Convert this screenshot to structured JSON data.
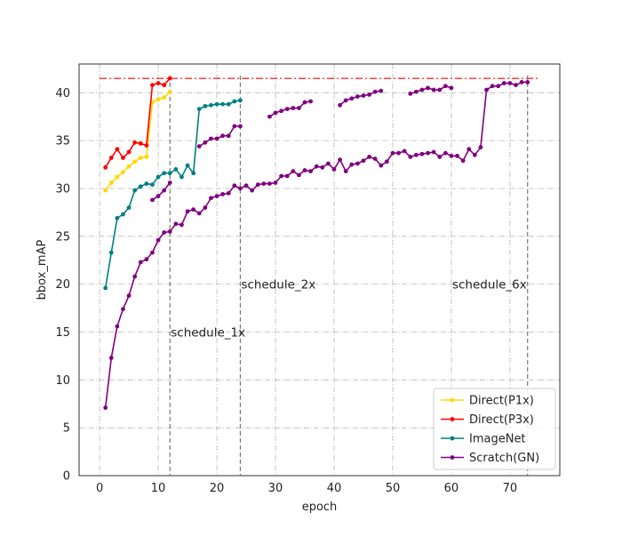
{
  "chart_data": {
    "type": "line",
    "title": "",
    "xlabel": "epoch",
    "ylabel": "bbox_mAP",
    "xlim": [
      -3.5,
      78.5
    ],
    "ylim": [
      0,
      43
    ],
    "xticks": [
      0,
      10,
      20,
      30,
      40,
      50,
      60,
      70
    ],
    "yticks": [
      0,
      5,
      10,
      15,
      20,
      25,
      30,
      35,
      40
    ],
    "grid": true,
    "legend_position": "lower-right",
    "reference_line": {
      "y": 41.5,
      "x_range": [
        0,
        75
      ],
      "color": "#ff0000",
      "style": "dash-dot"
    },
    "vlines": [
      {
        "x": 12,
        "label": "schedule_1x",
        "label_x": 12,
        "label_y": 15
      },
      {
        "x": 24,
        "label": "schedule_2x",
        "label_x": 24,
        "label_y": 20
      },
      {
        "x": 73,
        "label": "schedule_6x",
        "label_x": 60,
        "label_y": 20
      }
    ],
    "series": [
      {
        "name": "Direct(P1x)",
        "color": "#ffd700",
        "x": [
          1,
          2,
          3,
          4,
          5,
          6,
          7,
          8,
          9,
          10,
          11,
          12
        ],
        "y": [
          29.8,
          30.6,
          31.2,
          31.7,
          32.3,
          32.8,
          33.2,
          33.3,
          39.0,
          39.3,
          39.5,
          40.1
        ]
      },
      {
        "name": "Direct(P3x)",
        "color": "#ff0000",
        "x": [
          1,
          2,
          3,
          4,
          5,
          6,
          7,
          8,
          9,
          10,
          11,
          12
        ],
        "y": [
          32.2,
          33.2,
          34.1,
          33.2,
          33.8,
          34.8,
          34.7,
          34.5,
          40.8,
          41.0,
          40.8,
          41.5
        ]
      },
      {
        "name": "ImageNet",
        "color": "#008080",
        "x": [
          1,
          2,
          3,
          4,
          5,
          6,
          7,
          8,
          9,
          10,
          11,
          12,
          13,
          14,
          15,
          16,
          17,
          18,
          19,
          20,
          21,
          22,
          23,
          24
        ],
        "y": [
          19.6,
          23.3,
          26.9,
          27.3,
          28.0,
          29.8,
          30.2,
          30.5,
          30.4,
          31.2,
          31.6,
          31.6,
          32.0,
          31.2,
          32.4,
          31.6,
          38.3,
          38.6,
          38.7,
          38.8,
          38.8,
          38.8,
          39.1,
          39.2
        ]
      },
      {
        "name": "Scratch(GN)",
        "color": "#800080",
        "x": [
          1,
          2,
          3,
          4,
          5,
          6,
          7,
          8,
          9,
          10,
          11,
          12,
          13,
          14,
          15,
          16,
          17,
          18,
          19,
          20,
          21,
          22,
          23,
          24,
          25,
          26,
          27,
          28,
          29,
          30,
          31,
          32,
          33,
          34,
          35,
          36,
          37,
          38,
          39,
          40,
          41,
          42,
          43,
          44,
          45,
          46,
          47,
          48,
          49,
          50,
          51,
          52,
          53,
          54,
          55,
          56,
          57,
          58,
          59,
          60,
          61,
          62,
          63,
          64,
          65,
          66,
          67,
          68,
          69,
          70,
          71,
          72,
          73
        ],
        "y": [
          7.1,
          12.3,
          15.6,
          17.4,
          18.8,
          20.8,
          22.3,
          22.6,
          23.3,
          24.6,
          25.4,
          25.5,
          26.3,
          26.2,
          27.6,
          27.8,
          27.4,
          28.0,
          29.0,
          29.2,
          29.4,
          29.5,
          30.3,
          30.0,
          30.3,
          29.8,
          30.4,
          30.5,
          30.5,
          30.6,
          31.3,
          31.3,
          31.8,
          31.4,
          31.9,
          31.8,
          32.3,
          32.2,
          32.6,
          32.0,
          33.0,
          31.8,
          32.5,
          32.6,
          32.9,
          33.3,
          33.1,
          32.4,
          32.8,
          33.7,
          33.7,
          33.9,
          33.3,
          33.5,
          33.6,
          33.7,
          33.8,
          33.3,
          33.7,
          33.4,
          33.4,
          32.9,
          34.1,
          33.5,
          34.3,
          40.3,
          40.7,
          40.7,
          41.0,
          41.0,
          40.8,
          41.1,
          41.1
        ]
      },
      {
        "name": "Scratch(GN) segment 1x",
        "legend": false,
        "color": "#800080",
        "x": [
          9,
          10,
          11,
          12
        ],
        "y": [
          28.8,
          29.2,
          29.8,
          30.6
        ]
      },
      {
        "name": "Scratch(GN) segment 2x",
        "legend": false,
        "color": "#800080",
        "x": [
          17,
          18,
          19,
          20,
          21,
          22,
          23,
          24
        ],
        "y": [
          34.4,
          34.8,
          35.2,
          35.2,
          35.5,
          35.5,
          36.5,
          36.5
        ]
      },
      {
        "name": "Scratch(GN) segment 3x",
        "legend": false,
        "color": "#800080",
        "x": [
          29,
          30,
          31,
          32,
          33,
          34,
          35,
          36
        ],
        "y": [
          37.5,
          37.9,
          38.1,
          38.3,
          38.4,
          38.4,
          39.0,
          39.1
        ]
      },
      {
        "name": "Scratch(GN) segment 4x",
        "legend": false,
        "color": "#800080",
        "x": [
          41,
          42,
          43,
          44,
          45,
          46,
          47,
          48
        ],
        "y": [
          38.7,
          39.2,
          39.4,
          39.6,
          39.7,
          39.8,
          40.1,
          40.2
        ]
      },
      {
        "name": "Scratch(GN) segment 5x",
        "legend": false,
        "color": "#800080",
        "x": [
          53,
          54,
          55,
          56,
          57,
          58,
          59,
          60
        ],
        "y": [
          39.9,
          40.1,
          40.3,
          40.5,
          40.3,
          40.3,
          40.7,
          40.5
        ]
      }
    ]
  }
}
